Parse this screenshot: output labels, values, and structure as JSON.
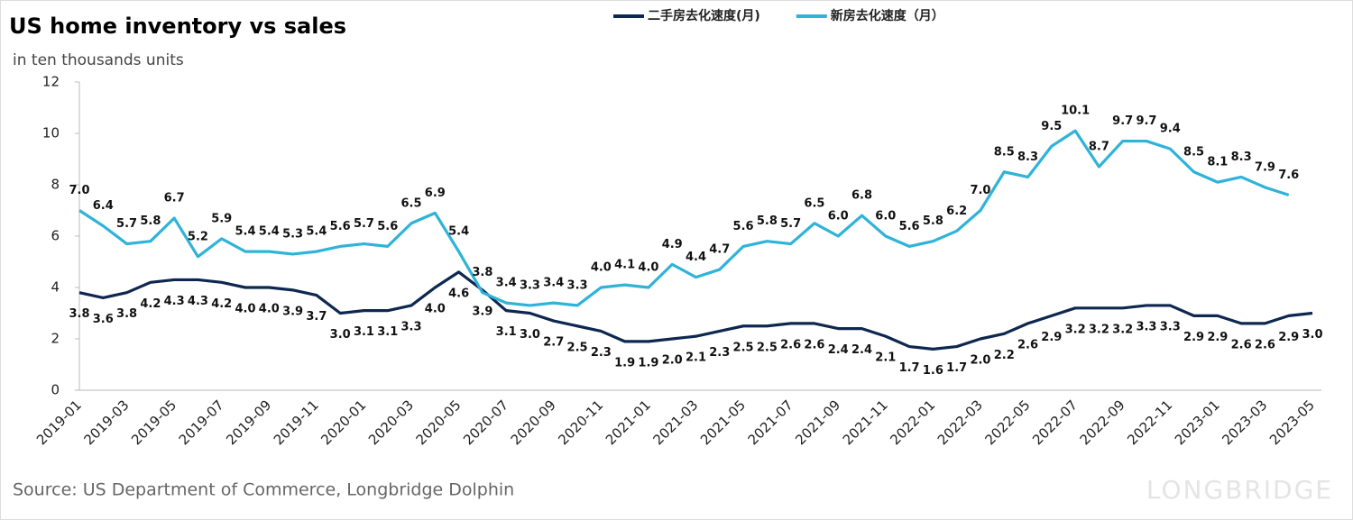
{
  "chart_data": {
    "type": "line",
    "title": "US home inventory vs sales",
    "subtitle": "in ten thousands units",
    "source": "Source: US Department of Commerce, Longbridge Dolphin",
    "watermark": "LONGBRIDGE",
    "categories": [
      "2019-01",
      null,
      "2019-03",
      null,
      "2019-05",
      null,
      "2019-07",
      null,
      "2019-09",
      null,
      "2019-11",
      null,
      "2020-01",
      null,
      "2020-03",
      null,
      "2020-05",
      null,
      "2020-07",
      null,
      "2020-09",
      null,
      "2020-11",
      null,
      "2021-01",
      null,
      "2021-03",
      null,
      "2021-05",
      null,
      "2021-07",
      null,
      "2021-09",
      null,
      "2021-11",
      null,
      "2022-01",
      null,
      "2022-03",
      null,
      "2022-05",
      null,
      "2022-07",
      null,
      "2022-09",
      null,
      "2022-11",
      null,
      "2023-01",
      null,
      "2023-03",
      null,
      "2023-05"
    ],
    "series": [
      {
        "name": "二手房去化速度(月)",
        "color": "#0d2750",
        "values": [
          3.8,
          3.6,
          3.8,
          4.2,
          4.3,
          4.3,
          4.2,
          4.0,
          4.0,
          3.9,
          3.7,
          3.0,
          3.1,
          3.1,
          3.3,
          4.0,
          4.6,
          3.9,
          3.1,
          3.0,
          2.7,
          2.5,
          2.3,
          1.9,
          1.9,
          2.0,
          2.1,
          2.3,
          2.5,
          2.5,
          2.6,
          2.6,
          2.4,
          2.4,
          2.1,
          1.7,
          1.6,
          1.7,
          2.0,
          2.2,
          2.6,
          2.9,
          3.2,
          3.2,
          3.2,
          3.3,
          3.3,
          2.9,
          2.9,
          2.6,
          2.6,
          2.9,
          3.0
        ],
        "value_labels": [
          "3.8",
          "3.6",
          "3.8",
          "4.2",
          "4.3",
          "4.3",
          "4.2",
          "4.0",
          "4.0",
          "3.9",
          "3.7",
          "3.0",
          "3.1",
          "3.1",
          "3.3",
          "4.0",
          "4.6",
          "3.9",
          "3.1",
          "3.0",
          "2.7",
          "2.5",
          "2.3",
          "1.9",
          "1.9",
          "2.0",
          "2.1",
          "2.3",
          "2.5",
          "2.5",
          "2.6",
          "2.6",
          "2.4",
          "2.4",
          "2.1",
          "1.7",
          "1.6",
          "1.7",
          "2.0",
          "2.2",
          "2.6",
          "2.9",
          "3.2",
          "3.2",
          "3.2",
          "3.3",
          "3.3",
          "2.9",
          "2.9",
          "2.6",
          "2.6",
          "2.9",
          "3.0"
        ]
      },
      {
        "name": "新房去化速度（月）",
        "color": "#2fb3d8",
        "values": [
          7.0,
          6.4,
          5.7,
          5.8,
          6.7,
          5.2,
          5.9,
          5.4,
          5.4,
          5.3,
          5.4,
          5.6,
          5.7,
          5.6,
          6.5,
          6.9,
          5.4,
          3.8,
          3.4,
          3.3,
          3.4,
          3.3,
          4.0,
          4.1,
          4.0,
          4.9,
          4.4,
          4.7,
          5.6,
          5.8,
          5.7,
          6.5,
          6.0,
          6.8,
          6.0,
          5.6,
          5.8,
          6.2,
          7.0,
          8.5,
          8.3,
          9.5,
          10.1,
          8.7,
          9.7,
          9.7,
          9.4,
          8.5,
          8.1,
          8.3,
          7.9,
          7.6,
          null
        ],
        "value_labels": [
          "7.0",
          "6.4",
          "5.7",
          "5.8",
          "6.7",
          "5.2",
          "5.9",
          "5.4",
          "5.4",
          "5.3",
          "5.4",
          "5.6",
          "5.7",
          "5.6",
          "6.5",
          "6.9",
          "5.4",
          "3.8",
          "3.4",
          "3.3",
          "3.4",
          "3.3",
          "4.0",
          "4.1",
          "4.0",
          "4.9",
          "4.4",
          "4.7",
          "5.6",
          "5.8",
          "5.7",
          "6.5",
          "6.0",
          "6.8",
          "6.0",
          "5.6",
          "5.8",
          "6.2",
          "7.0",
          "8.5",
          "8.3",
          "9.5",
          "10.1",
          "8.7",
          "9.7",
          "9.7",
          "9.4",
          "8.5",
          "8.1",
          "8.3",
          "7.9",
          "7.6",
          null
        ]
      }
    ],
    "ylim": [
      0,
      12
    ],
    "yticks": [
      0,
      2,
      4,
      6,
      8,
      10,
      12
    ],
    "grid": false,
    "legend": "top"
  }
}
